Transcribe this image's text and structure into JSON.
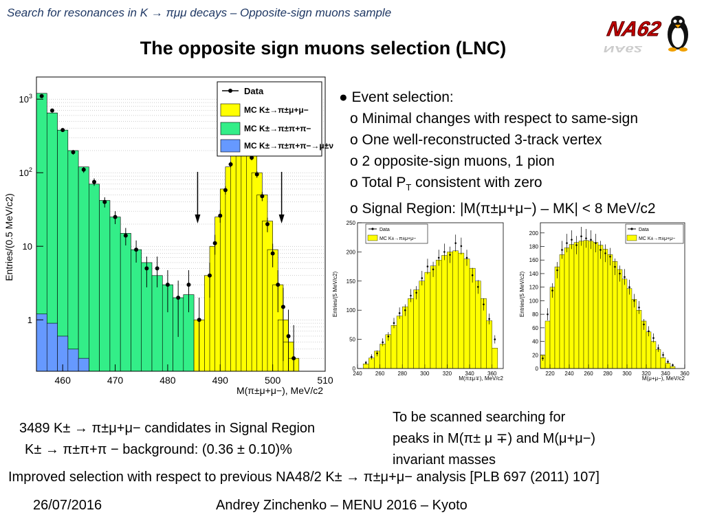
{
  "header": {
    "subtitle": "Search for resonances in K → πμμ decays – Opposite-sign muons sample"
  },
  "title": "The opposite sign muons selection (LNC)",
  "logo": {
    "text": "NA62",
    "icon": "penguin-mascot-icon"
  },
  "bullets": {
    "heading": "● Event selection:",
    "items": [
      "o Minimal changes with respect to same-sign",
      "o One well-reconstructed 3-track vertex",
      "o 2 opposite-sign muons, 1 pion",
      "o Total P",
      "o Signal Region: |M(π±μ+μ−) – MK| < 8 MeV/c2"
    ],
    "pt_sub": "T",
    "pt_rest": " consistent with zero"
  },
  "stats": {
    "candidates": "3489 K± → π±μ+μ− candidates in Signal Region",
    "background": "K± → π±π+π − background: (0.36 ± 0.10)%"
  },
  "scan_note": [
    "To be scanned searching for",
    "peaks in M(π± μ ∓) and M(μ+μ−)",
    "invariant masses"
  ],
  "improved": "Improved selection with respect to previous NA48/2 K± → π±μ+μ− analysis [PLB 697 (2011) 107]",
  "footer": {
    "date": "26/07/2016",
    "author": "Andrey Zinchenko – MENU 2016 – Kyoto"
  },
  "colors": {
    "signal": "#ffff00",
    "k3pi": "#33ee88",
    "kmu": "#6699ff",
    "header": "#1f3864"
  },
  "chart_data": [
    {
      "type": "bar",
      "xlabel": "M(π±μ+μ−), MeV/c2",
      "ylabel": "Entries/(0.5 MeV/c2)",
      "xlim": [
        455,
        510
      ],
      "ylim": [
        0.2,
        2000
      ],
      "yscale": "log",
      "xticks": [
        "460",
        "470",
        "480",
        "490",
        "500",
        "510"
      ],
      "yticks": [
        "1",
        "10",
        "102",
        "103"
      ],
      "legend_position": "top-right",
      "legend": [
        "Data",
        "MC K±→π±μ+μ−",
        "MC K±→π±π+π−",
        "MC K±→π±π+π−→μ±ν"
      ],
      "signal_region_arrows": [
        485.7,
        501.7
      ],
      "x": [
        456,
        458,
        460,
        462,
        464,
        466,
        468,
        470,
        472,
        474,
        476,
        478,
        480,
        482,
        484,
        486,
        488,
        489,
        490,
        491,
        492,
        493,
        494,
        495,
        496,
        497,
        498,
        499,
        500,
        501,
        502,
        503,
        504,
        505,
        506
      ],
      "series": [
        {
          "name": "MC K±→π±π+π−",
          "values": [
            1200,
            650,
            380,
            200,
            120,
            70,
            42,
            25,
            15,
            9,
            6,
            4,
            3,
            2,
            2.2,
            0,
            0,
            0,
            0,
            0,
            0,
            0,
            0,
            0,
            0,
            0,
            0,
            0,
            0,
            0,
            0,
            0,
            0,
            0,
            0
          ]
        },
        {
          "name": "MC K±→π±μ+μ−",
          "values": [
            0,
            0,
            0,
            0,
            0,
            0,
            0,
            0,
            0,
            0,
            0,
            0,
            0,
            0,
            0,
            1,
            4,
            10,
            25,
            60,
            120,
            200,
            260,
            240,
            170,
            100,
            50,
            22,
            9,
            3,
            1,
            0.5,
            0.3,
            0,
            0
          ]
        },
        {
          "name": "MC K±→π±π+π−→μ±ν",
          "values": [
            1.2,
            0.9,
            0.6,
            0.4,
            0.3,
            0.2,
            0,
            0,
            0,
            0,
            0,
            0,
            0,
            0,
            0,
            0,
            0,
            0,
            0,
            0,
            0,
            0,
            0,
            0,
            0,
            0,
            0,
            0,
            0,
            0,
            0,
            0,
            0,
            0,
            0
          ]
        },
        {
          "name": "Data",
          "values": [
            1100,
            700,
            380,
            190,
            110,
            75,
            40,
            25,
            14,
            9,
            5,
            5,
            3,
            2,
            3,
            1,
            4,
            11,
            26,
            58,
            130,
            210,
            270,
            230,
            160,
            95,
            48,
            20,
            8,
            3,
            1.5,
            0.6,
            0.3,
            0,
            0
          ]
        }
      ]
    },
    {
      "type": "bar",
      "xlabel": "M(π±μ∓), MeV/c2",
      "ylabel": "Entries/(5 MeV/c2)",
      "xlim": [
        240,
        370
      ],
      "ylim": [
        0,
        250
      ],
      "xticks": [
        "240",
        "260",
        "280",
        "300",
        "320",
        "340",
        "360"
      ],
      "yticks": [
        "0",
        "50",
        "100",
        "150",
        "200",
        "250"
      ],
      "legend": [
        "Data",
        "MC K±→π±μ+μ−"
      ],
      "x": [
        247.5,
        252.5,
        257.5,
        262.5,
        267.5,
        272.5,
        277.5,
        282.5,
        287.5,
        292.5,
        297.5,
        302.5,
        307.5,
        312.5,
        317.5,
        322.5,
        327.5,
        332.5,
        337.5,
        342.5,
        347.5,
        352.5,
        357.5,
        362.5
      ],
      "series": [
        {
          "name": "MC K±→π±μ+μ−",
          "values": [
            8,
            18,
            30,
            42,
            58,
            74,
            90,
            106,
            120,
            135,
            150,
            165,
            176,
            186,
            194,
            200,
            202,
            198,
            188,
            172,
            150,
            120,
            82,
            35
          ]
        },
        {
          "name": "Data",
          "values": [
            10,
            20,
            26,
            45,
            55,
            78,
            95,
            100,
            125,
            130,
            155,
            175,
            170,
            190,
            200,
            195,
            215,
            210,
            190,
            160,
            140,
            110,
            85,
            50
          ]
        }
      ]
    },
    {
      "type": "bar",
      "xlabel": "M(μ+μ−), MeV/c2",
      "ylabel": "Entries/(5 MeV/c2)",
      "xlim": [
        210,
        360
      ],
      "ylim": [
        0,
        215
      ],
      "xticks": [
        "220",
        "240",
        "260",
        "280",
        "300",
        "320",
        "340",
        "360"
      ],
      "yticks": [
        "0",
        "20",
        "40",
        "60",
        "80",
        "100",
        "120",
        "140",
        "160",
        "180",
        "200"
      ],
      "legend": [
        "Data",
        "MC K±→π±μ+μ−"
      ],
      "x": [
        212.5,
        217.5,
        222.5,
        227.5,
        232.5,
        237.5,
        242.5,
        247.5,
        252.5,
        257.5,
        262.5,
        267.5,
        272.5,
        277.5,
        282.5,
        287.5,
        292.5,
        297.5,
        302.5,
        307.5,
        312.5,
        317.5,
        322.5,
        327.5,
        332.5,
        337.5,
        342.5,
        347.5
      ],
      "series": [
        {
          "name": "MC K±→π±μ+μ−",
          "values": [
            20,
            70,
            120,
            150,
            168,
            178,
            183,
            186,
            188,
            189,
            188,
            186,
            182,
            176,
            168,
            158,
            146,
            132,
            118,
            102,
            86,
            70,
            54,
            40,
            28,
            16,
            8,
            3
          ]
        },
        {
          "name": "Data",
          "values": [
            15,
            80,
            115,
            145,
            175,
            185,
            190,
            182,
            195,
            192,
            190,
            185,
            175,
            170,
            165,
            150,
            140,
            135,
            120,
            100,
            90,
            65,
            55,
            45,
            30,
            20,
            10,
            5
          ]
        }
      ]
    }
  ]
}
